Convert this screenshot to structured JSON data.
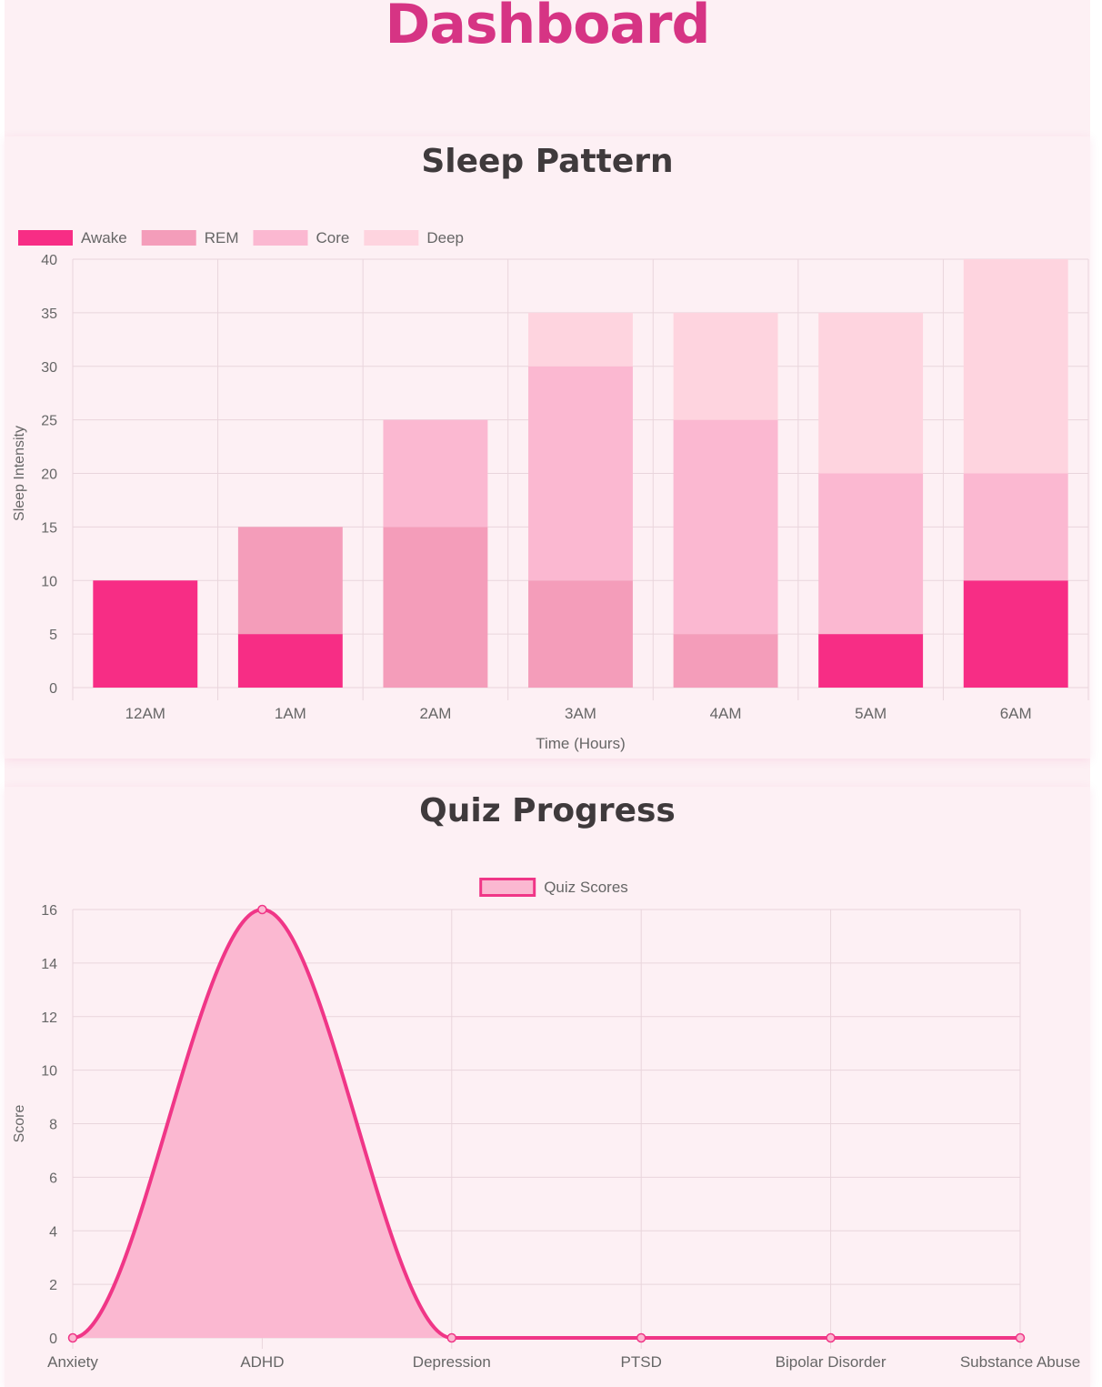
{
  "page": {
    "title": "Dashboard"
  },
  "sleep_section": {
    "title": "Sleep Pattern"
  },
  "quiz_section": {
    "title": "Quiz Progress"
  },
  "colors": {
    "title": "#d63484",
    "awake": "#f72d85",
    "rem": "#f49dba",
    "core": "#fbb8d1",
    "deep": "#fed4df",
    "quiz_line": "#f03687",
    "quiz_fill": "#fbb8d1",
    "grid": "#e9d5dc",
    "text": "#666666"
  },
  "chart_data": [
    {
      "type": "bar",
      "stacked": true,
      "title": "",
      "categories": [
        "12AM",
        "1AM",
        "2AM",
        "3AM",
        "4AM",
        "5AM",
        "6AM"
      ],
      "series": [
        {
          "name": "Awake",
          "values": [
            10,
            5,
            0,
            0,
            0,
            5,
            10
          ]
        },
        {
          "name": "REM",
          "values": [
            0,
            10,
            15,
            10,
            5,
            0,
            0
          ]
        },
        {
          "name": "Core",
          "values": [
            0,
            0,
            10,
            20,
            20,
            15,
            10
          ]
        },
        {
          "name": "Deep",
          "values": [
            0,
            0,
            0,
            5,
            10,
            15,
            20
          ]
        }
      ],
      "xlabel": "Time (Hours)",
      "ylabel": "Sleep Intensity",
      "ylim": [
        0,
        40
      ],
      "yticks": [
        0,
        5,
        10,
        15,
        20,
        25,
        30,
        35,
        40
      ],
      "grid": true,
      "legend": "top-left"
    },
    {
      "type": "area",
      "title": "",
      "categories": [
        "Anxiety",
        "ADHD",
        "Depression",
        "PTSD",
        "Bipolar Disorder",
        "Substance Abuse"
      ],
      "series": [
        {
          "name": "Quiz Scores",
          "values": [
            0,
            16,
            0,
            0,
            0,
            0
          ]
        }
      ],
      "xlabel": "",
      "ylabel": "Score",
      "ylim": [
        0,
        16
      ],
      "yticks": [
        0,
        2,
        4,
        6,
        8,
        10,
        12,
        14,
        16
      ],
      "grid": true,
      "legend": "top-center"
    }
  ]
}
